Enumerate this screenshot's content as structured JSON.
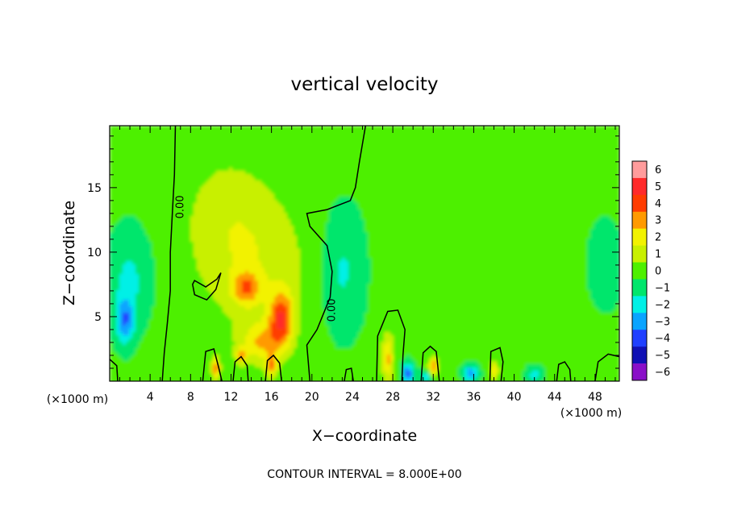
{
  "chart_data": {
    "type": "heatmap",
    "title": "vertical velocity",
    "xlabel": "X−coordinate",
    "ylabel": "Z−coordinate",
    "x_unit_left": "(×1000 m)",
    "x_unit_right": "(×1000 m)",
    "footer": "CONTOUR INTERVAL = 8.000E+00",
    "xlim": [
      0,
      50.4
    ],
    "ylim": [
      0,
      19.8
    ],
    "x_ticks": [
      4,
      8,
      12,
      16,
      20,
      24,
      28,
      32,
      36,
      40,
      44,
      48
    ],
    "y_ticks": [
      5,
      10,
      15
    ],
    "contour_label": "0.00",
    "contour_label_positions": [
      [
        7,
        13.5
      ],
      [
        22,
        5.5
      ]
    ],
    "zero_contour": [
      [
        6.5,
        19.8
      ],
      [
        6.4,
        16
      ],
      [
        6.2,
        13
      ],
      [
        6.0,
        10
      ],
      [
        6.0,
        7
      ],
      [
        5.7,
        4.5
      ],
      [
        5.4,
        2.2
      ],
      [
        5.2,
        0
      ]
    ],
    "zero_contour_2": [
      [
        25.3,
        19.8
      ],
      [
        24.7,
        17
      ],
      [
        24.3,
        15
      ],
      [
        23.8,
        14
      ],
      [
        21.5,
        13.3
      ],
      [
        19.5,
        13.0
      ],
      [
        19.8,
        12.0
      ],
      [
        21.5,
        10.5
      ],
      [
        22.0,
        8.5
      ],
      [
        21.8,
        6.5
      ],
      [
        20.5,
        4.0
      ],
      [
        19.5,
        2.8
      ],
      [
        19.8,
        0
      ]
    ],
    "closed_contours": [
      [
        [
          8.4,
          7.8
        ],
        [
          9.5,
          7.3
        ],
        [
          10.6,
          7.9
        ],
        [
          11.0,
          8.4
        ],
        [
          10.5,
          7.1
        ],
        [
          9.6,
          6.3
        ],
        [
          8.4,
          6.7
        ],
        [
          8.2,
          7.5
        ]
      ],
      [
        [
          26.4,
          0
        ],
        [
          26.5,
          3.5
        ],
        [
          27.5,
          5.4
        ],
        [
          28.5,
          5.5
        ],
        [
          29.2,
          4.0
        ],
        [
          29.0,
          2.0
        ],
        [
          28.9,
          0
        ]
      ],
      [
        [
          30.8,
          0
        ],
        [
          31.0,
          2.2
        ],
        [
          31.7,
          2.7
        ],
        [
          32.3,
          2.3
        ],
        [
          32.6,
          0
        ]
      ],
      [
        [
          37.6,
          0
        ],
        [
          37.7,
          2.3
        ],
        [
          38.6,
          2.6
        ],
        [
          38.9,
          1.5
        ],
        [
          38.7,
          0
        ]
      ],
      [
        [
          9.2,
          0
        ],
        [
          9.5,
          2.3
        ],
        [
          10.3,
          2.5
        ],
        [
          10.8,
          1.0
        ],
        [
          11.1,
          0
        ]
      ],
      [
        [
          12.2,
          0
        ],
        [
          12.4,
          1.5
        ],
        [
          13.0,
          1.9
        ],
        [
          13.6,
          1.2
        ],
        [
          13.7,
          0
        ]
      ],
      [
        [
          15.4,
          0
        ],
        [
          15.6,
          1.6
        ],
        [
          16.2,
          2.0
        ],
        [
          16.8,
          1.4
        ],
        [
          17.0,
          0
        ]
      ],
      [
        [
          44.2,
          0
        ],
        [
          44.4,
          1.3
        ],
        [
          45.0,
          1.5
        ],
        [
          45.5,
          0.9
        ],
        [
          45.6,
          0
        ]
      ],
      [
        [
          48.0,
          0
        ],
        [
          48.3,
          1.5
        ],
        [
          49.3,
          2.1
        ],
        [
          50.4,
          1.9
        ]
      ],
      [
        [
          0,
          1.7
        ],
        [
          0.7,
          1.2
        ],
        [
          0.8,
          0
        ]
      ],
      [
        [
          23.2,
          0
        ],
        [
          23.4,
          0.9
        ],
        [
          23.9,
          1.0
        ],
        [
          24.1,
          0
        ]
      ]
    ],
    "colorbar_levels": [
      6,
      5,
      4,
      3,
      2,
      1,
      0,
      -1,
      -2,
      -3,
      -4,
      -5,
      -6
    ],
    "colorbar_labels": [
      "6",
      "5",
      "4",
      "3",
      "2",
      "1",
      "0",
      "−1",
      "−2",
      "−3",
      "−4",
      "−5",
      "−6"
    ],
    "colorbar_colors": [
      "#ff9c9c",
      "#ff2a2a",
      "#ff3c00",
      "#ff9a00",
      "#f2f200",
      "#c8f000",
      "#4ef000",
      "#00e66c",
      "#00f0e6",
      "#0aa4ff",
      "#2040ff",
      "#1010b4",
      "#8a10c8"
    ],
    "background_value": 0.2,
    "features": [
      {
        "x": 17.0,
        "z": 4.8,
        "value": 4.2,
        "rx": 1.2,
        "rz": 2.2
      },
      {
        "x": 13.5,
        "z": 7.2,
        "value": 2.8,
        "rx": 1.4,
        "rz": 1.3
      },
      {
        "x": 14.5,
        "z": 9.0,
        "value": 1.4,
        "rx": 5.5,
        "rz": 5.5
      },
      {
        "x": 11.5,
        "z": 13.0,
        "value": 1.0,
        "rx": 4.5,
        "rz": 5.0
      },
      {
        "x": 15.0,
        "z": 3.0,
        "value": 2.5,
        "rx": 2.0,
        "rz": 1.6
      },
      {
        "x": 10.5,
        "z": 1.0,
        "value": 3.5,
        "rx": 0.4,
        "rz": 0.9
      },
      {
        "x": 13.0,
        "z": 2.0,
        "value": 3.0,
        "rx": 0.5,
        "rz": 0.6
      },
      {
        "x": 16.0,
        "z": 1.2,
        "value": 3.2,
        "rx": 0.5,
        "rz": 0.9
      },
      {
        "x": 27.5,
        "z": 1.8,
        "value": 3.0,
        "rx": 0.6,
        "rz": 1.8
      },
      {
        "x": 32.0,
        "z": 1.0,
        "value": 4.0,
        "rx": 0.5,
        "rz": 0.8
      },
      {
        "x": 38.0,
        "z": 0.8,
        "value": 3.0,
        "rx": 0.4,
        "rz": 0.7
      },
      {
        "x": 1.5,
        "z": 4.7,
        "value": -2.9,
        "rx": 0.9,
        "rz": 1.8
      },
      {
        "x": 2.0,
        "z": 8.0,
        "value": -1.4,
        "rx": 2.0,
        "rz": 3.5
      },
      {
        "x": 23.0,
        "z": 8.5,
        "value": -1.4,
        "rx": 2.0,
        "rz": 4.5
      },
      {
        "x": 29.5,
        "z": 0.6,
        "value": -3.5,
        "rx": 0.6,
        "rz": 0.8
      },
      {
        "x": 35.7,
        "z": 0.6,
        "value": -3.2,
        "rx": 0.7,
        "rz": 0.6
      },
      {
        "x": 31.5,
        "z": 0.3,
        "value": -2.2,
        "rx": 0.8,
        "rz": 0.5
      },
      {
        "x": 49.0,
        "z": 9.0,
        "value": -1.0,
        "rx": 1.5,
        "rz": 3.0
      },
      {
        "x": 42.0,
        "z": 0.5,
        "value": -1.6,
        "rx": 0.8,
        "rz": 0.6
      }
    ]
  }
}
